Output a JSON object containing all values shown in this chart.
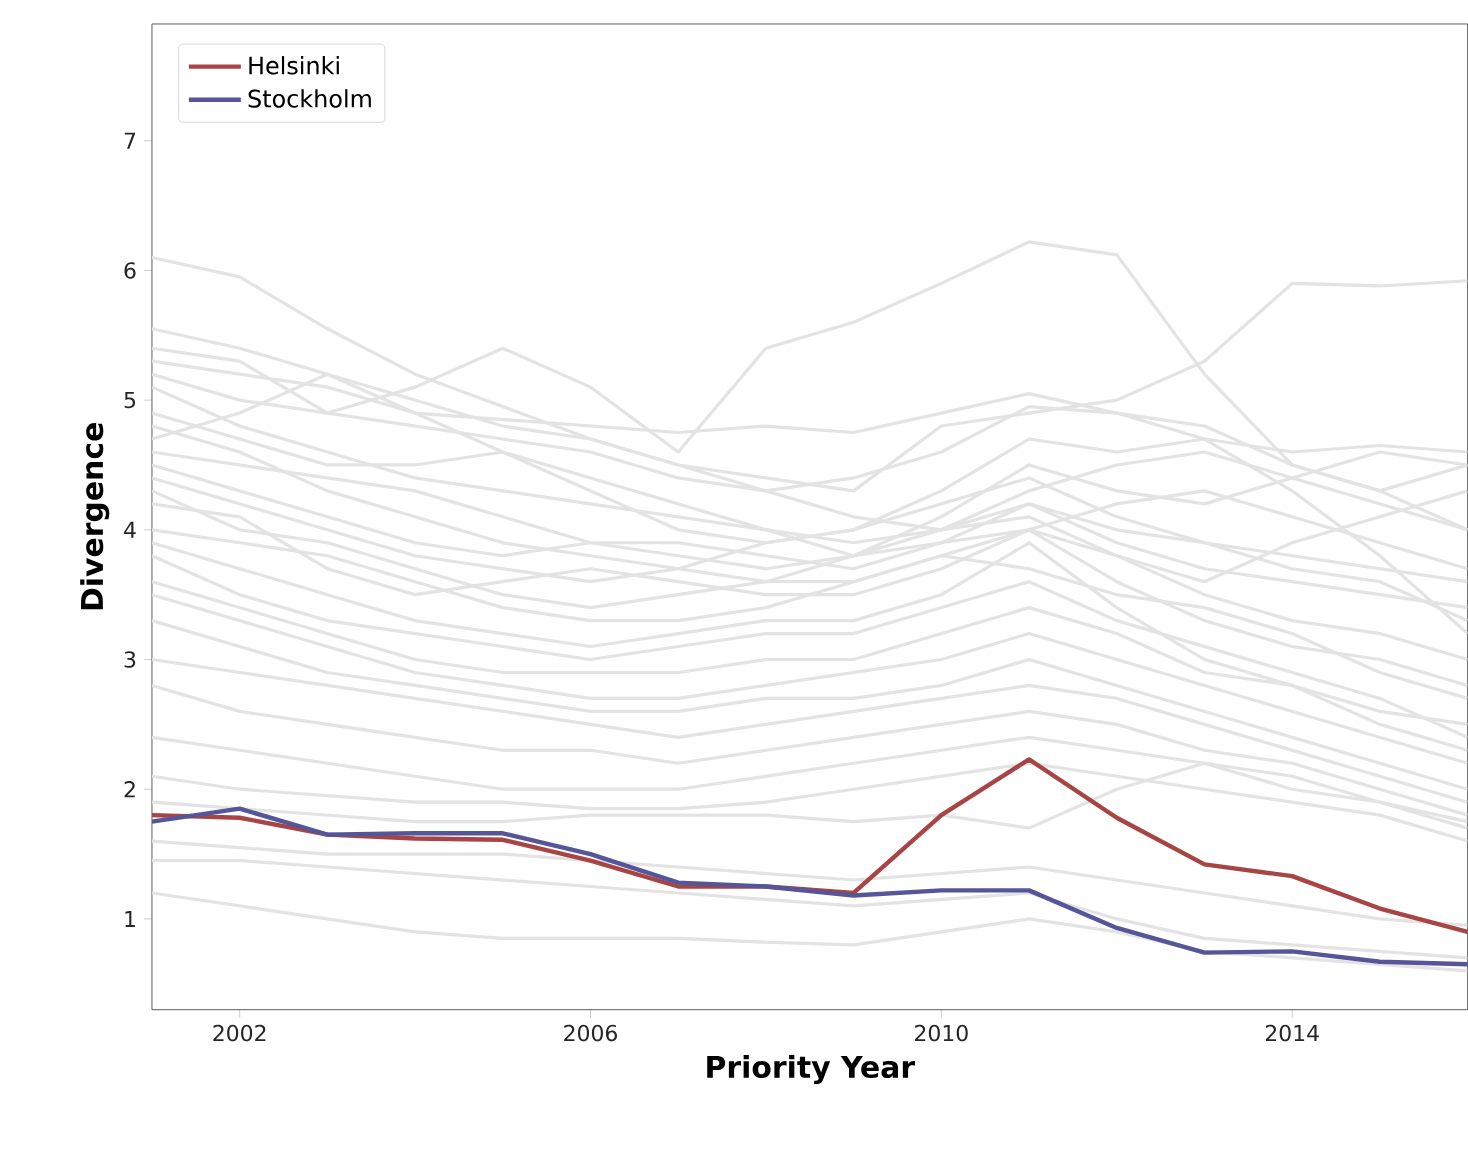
{
  "chart_data": {
    "type": "line",
    "xlabel": "Priority Year",
    "ylabel": "Divergence",
    "x": [
      2001,
      2002,
      2003,
      2004,
      2005,
      2006,
      2007,
      2008,
      2009,
      2010,
      2011,
      2012,
      2013,
      2014,
      2015,
      2016
    ],
    "xlim": [
      2001,
      2016
    ],
    "ylim": [
      0.3,
      7.9
    ],
    "xticks": [
      2002,
      2006,
      2010,
      2014
    ],
    "yticks": [
      1,
      2,
      3,
      4,
      5,
      6,
      7
    ],
    "legend": "top left",
    "grid": false,
    "line_style": "solid",
    "marker": "none",
    "series": [
      {
        "color": "#e3e3e3",
        "values": [
          6.1,
          5.95,
          5.55,
          5.2,
          4.95,
          4.7,
          4.5,
          4.3,
          4.1,
          4.0,
          4.2,
          4.0,
          3.9,
          3.8,
          3.7,
          3.6
        ]
      },
      {
        "color": "#e3e3e3",
        "values": [
          5.2,
          5.0,
          4.9,
          5.1,
          5.4,
          5.1,
          4.6,
          5.4,
          5.6,
          5.9,
          6.22,
          6.12,
          5.2,
          4.5,
          4.3,
          4.0
        ]
      },
      {
        "color": "#e3e3e3",
        "values": [
          5.55,
          5.4,
          5.2,
          5.0,
          4.8,
          4.7,
          4.5,
          4.4,
          4.3,
          4.8,
          4.9,
          5.0,
          5.3,
          5.9,
          5.88,
          5.92
        ]
      },
      {
        "color": "#e3e3e3",
        "values": [
          5.3,
          5.2,
          5.1,
          4.9,
          4.85,
          4.8,
          4.75,
          4.8,
          4.75,
          4.9,
          5.05,
          4.9,
          4.7,
          4.6,
          4.65,
          4.6
        ]
      },
      {
        "color": "#e3e3e3",
        "values": [
          5.4,
          5.3,
          4.9,
          4.8,
          4.7,
          4.6,
          4.4,
          4.3,
          4.4,
          4.6,
          4.95,
          4.9,
          4.8,
          4.5,
          4.3,
          4.5
        ]
      },
      {
        "color": "#e3e3e3",
        "values": [
          5.1,
          4.8,
          4.6,
          4.4,
          4.3,
          4.2,
          4.1,
          4.0,
          3.9,
          4.0,
          4.3,
          4.5,
          4.6,
          4.4,
          4.2,
          4.0
        ]
      },
      {
        "color": "#e3e3e3",
        "values": [
          4.9,
          4.7,
          4.5,
          4.5,
          4.6,
          4.4,
          4.2,
          4.0,
          3.8,
          3.9,
          4.0,
          4.2,
          4.3,
          4.1,
          3.9,
          3.7
        ]
      },
      {
        "color": "#e3e3e3",
        "values": [
          4.6,
          4.5,
          4.4,
          4.3,
          4.1,
          3.9,
          3.8,
          3.7,
          3.8,
          4.1,
          4.5,
          4.3,
          4.2,
          4.4,
          4.6,
          4.5
        ]
      },
      {
        "color": "#e3e3e3",
        "values": [
          4.5,
          4.3,
          4.1,
          3.9,
          3.8,
          3.9,
          3.9,
          3.8,
          3.7,
          3.9,
          4.2,
          3.9,
          3.7,
          3.6,
          3.5,
          3.4
        ]
      },
      {
        "color": "#e3e3e3",
        "values": [
          4.4,
          4.2,
          4.0,
          3.8,
          3.7,
          3.6,
          3.7,
          3.9,
          4.0,
          4.2,
          4.4,
          4.1,
          3.9,
          3.7,
          3.6,
          3.3
        ]
      },
      {
        "color": "#e3e3e3",
        "values": [
          4.3,
          4.0,
          3.9,
          3.7,
          3.5,
          3.4,
          3.5,
          3.6,
          3.8,
          4.0,
          4.1,
          3.8,
          3.5,
          3.3,
          3.2,
          3.0
        ]
      },
      {
        "color": "#e3e3e3",
        "values": [
          4.2,
          4.1,
          3.7,
          3.5,
          3.6,
          3.7,
          3.6,
          3.5,
          3.5,
          3.7,
          4.0,
          3.6,
          3.3,
          3.1,
          3.0,
          2.8
        ]
      },
      {
        "color": "#e3e3e3",
        "values": [
          4.0,
          3.9,
          3.8,
          3.6,
          3.4,
          3.3,
          3.3,
          3.4,
          3.6,
          3.8,
          3.7,
          3.5,
          3.4,
          3.2,
          2.9,
          2.7
        ]
      },
      {
        "color": "#e3e3e3",
        "values": [
          3.9,
          3.7,
          3.5,
          3.3,
          3.2,
          3.1,
          3.2,
          3.3,
          3.3,
          3.5,
          3.9,
          3.4,
          3.0,
          2.8,
          2.6,
          2.5
        ]
      },
      {
        "color": "#e3e3e3",
        "values": [
          3.8,
          3.5,
          3.3,
          3.2,
          3.1,
          3.0,
          3.1,
          3.2,
          3.2,
          3.4,
          3.6,
          3.3,
          3.1,
          2.9,
          2.7,
          2.4
        ]
      },
      {
        "color": "#e3e3e3",
        "values": [
          3.6,
          3.4,
          3.2,
          3.0,
          2.9,
          2.9,
          2.9,
          3.0,
          3.0,
          3.2,
          3.4,
          3.2,
          2.9,
          2.8,
          2.5,
          2.3
        ]
      },
      {
        "color": "#e3e3e3",
        "values": [
          3.5,
          3.3,
          3.1,
          2.9,
          2.8,
          2.7,
          2.7,
          2.8,
          2.9,
          3.0,
          3.2,
          3.0,
          2.8,
          2.6,
          2.4,
          2.2
        ]
      },
      {
        "color": "#e3e3e3",
        "values": [
          3.3,
          3.1,
          2.9,
          2.8,
          2.7,
          2.6,
          2.6,
          2.7,
          2.7,
          2.8,
          3.0,
          2.8,
          2.6,
          2.4,
          2.2,
          2.0
        ]
      },
      {
        "color": "#e3e3e3",
        "values": [
          3.0,
          2.9,
          2.8,
          2.7,
          2.6,
          2.5,
          2.4,
          2.5,
          2.6,
          2.7,
          2.8,
          2.7,
          2.5,
          2.3,
          2.1,
          1.9
        ]
      },
      {
        "color": "#e3e3e3",
        "values": [
          2.8,
          2.6,
          2.5,
          2.4,
          2.3,
          2.3,
          2.2,
          2.3,
          2.4,
          2.5,
          2.6,
          2.5,
          2.3,
          2.2,
          2.0,
          1.8
        ]
      },
      {
        "color": "#e3e3e3",
        "values": [
          2.4,
          2.3,
          2.2,
          2.1,
          2.0,
          2.0,
          2.0,
          2.1,
          2.2,
          2.3,
          2.4,
          2.3,
          2.2,
          2.0,
          1.9,
          1.7
        ]
      },
      {
        "color": "#e3e3e3",
        "values": [
          2.1,
          2.0,
          1.95,
          1.9,
          1.9,
          1.85,
          1.85,
          1.9,
          2.0,
          2.1,
          2.2,
          2.1,
          2.0,
          1.9,
          1.8,
          1.6
        ]
      },
      {
        "color": "#e3e3e3",
        "values": [
          1.9,
          1.85,
          1.8,
          1.75,
          1.75,
          1.8,
          1.8,
          1.8,
          1.75,
          1.8,
          1.7,
          2.0,
          2.2,
          2.1,
          1.9,
          1.75
        ]
      },
      {
        "color": "#e3e3e3",
        "values": [
          1.6,
          1.55,
          1.5,
          1.5,
          1.5,
          1.45,
          1.4,
          1.35,
          1.3,
          1.35,
          1.4,
          1.3,
          1.2,
          1.1,
          1.0,
          0.95
        ]
      },
      {
        "color": "#e3e3e3",
        "values": [
          1.45,
          1.45,
          1.4,
          1.35,
          1.3,
          1.25,
          1.2,
          1.15,
          1.1,
          1.15,
          1.2,
          1.0,
          0.85,
          0.8,
          0.75,
          0.7
        ]
      },
      {
        "color": "#e3e3e3",
        "values": [
          1.2,
          1.1,
          1.0,
          0.9,
          0.85,
          0.85,
          0.85,
          0.82,
          0.8,
          0.9,
          1.0,
          0.9,
          0.75,
          0.7,
          0.65,
          0.6
        ]
      },
      {
        "color": "#e3e3e3",
        "values": [
          4.8,
          4.6,
          4.3,
          4.1,
          3.9,
          3.8,
          3.7,
          3.6,
          3.6,
          3.8,
          4.0,
          3.8,
          3.6,
          3.9,
          4.1,
          4.3
        ]
      },
      {
        "color": "#e3e3e3",
        "values": [
          4.7,
          4.9,
          5.2,
          4.9,
          4.6,
          4.3,
          4.0,
          3.9,
          4.0,
          4.3,
          4.7,
          4.6,
          4.7,
          4.3,
          3.8,
          3.2
        ]
      },
      {
        "color": "#a84444",
        "name": "Helsinki",
        "values": [
          1.8,
          1.78,
          1.65,
          1.62,
          1.61,
          1.45,
          1.25,
          1.25,
          1.2,
          1.8,
          2.23,
          1.78,
          1.42,
          1.33,
          1.08,
          0.9
        ]
      },
      {
        "color": "#555599",
        "name": "Stockholm",
        "values": [
          1.75,
          1.85,
          1.65,
          1.66,
          1.66,
          1.5,
          1.28,
          1.25,
          1.18,
          1.22,
          1.22,
          0.93,
          0.74,
          0.75,
          0.67,
          0.65
        ]
      }
    ]
  }
}
